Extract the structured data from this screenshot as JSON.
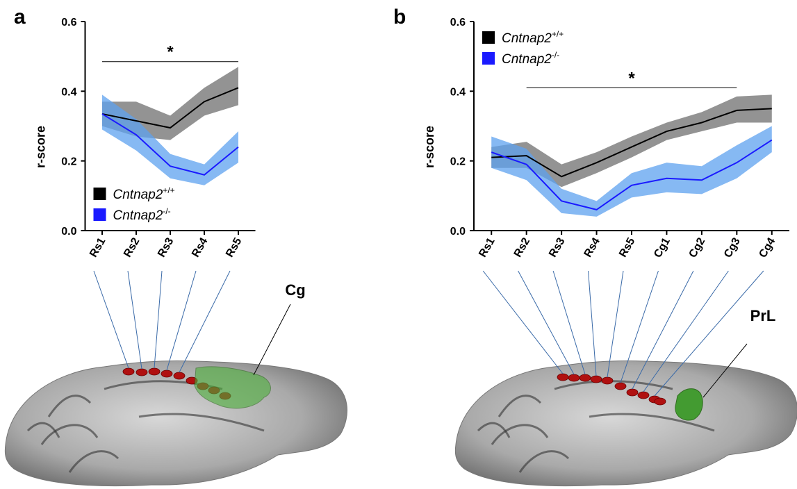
{
  "panels": [
    {
      "letter": "a",
      "region_label": "Cg"
    },
    {
      "letter": "b",
      "region_label": "PrL"
    }
  ],
  "chart_data": [
    {
      "type": "line",
      "ylabel": "r-score",
      "annotation": "*",
      "sig_y": 0.485,
      "sig_from": 0,
      "sig_to": 4,
      "categories": [
        "Rs1",
        "Rs2",
        "Rs3",
        "Rs4",
        "Rs5"
      ],
      "ylim": [
        0,
        0.6
      ],
      "yticks": [
        {
          "value": 0,
          "label": "0.0"
        },
        0.2,
        0.4,
        0.6
      ],
      "legend": "lower left",
      "series": [
        {
          "name": "Cntnap2",
          "superscript": "+/+",
          "color": "#000000",
          "band_color": "#6f6f6f",
          "values": [
            0.335,
            0.315,
            0.295,
            0.37,
            0.41
          ],
          "upper": [
            0.37,
            0.37,
            0.33,
            0.41,
            0.47
          ],
          "lower": [
            0.3,
            0.27,
            0.26,
            0.33,
            0.36
          ]
        },
        {
          "name": "Cntnap2",
          "superscript": "-/-",
          "color": "#1a1aff",
          "band_color": "#5ea2ef",
          "values": [
            0.335,
            0.275,
            0.185,
            0.16,
            0.24
          ],
          "upper": [
            0.39,
            0.32,
            0.22,
            0.19,
            0.285
          ],
          "lower": [
            0.29,
            0.23,
            0.15,
            0.13,
            0.195
          ]
        }
      ]
    },
    {
      "type": "line",
      "ylabel": "r-score",
      "annotation": "*",
      "sig_y": 0.41,
      "sig_from": 1,
      "sig_to": 7,
      "categories": [
        "Rs1",
        "Rs2",
        "Rs3",
        "Rs4",
        "Rs5",
        "Cg1",
        "Cg2",
        "Cg3",
        "Cg4"
      ],
      "ylim": [
        0,
        0.6
      ],
      "yticks": [
        {
          "value": 0,
          "label": "0.0"
        },
        0.2,
        0.4,
        0.6
      ],
      "legend": "upper left",
      "series": [
        {
          "name": "Cntnap2",
          "superscript": "+/+",
          "color": "#000000",
          "band_color": "#6f6f6f",
          "values": [
            0.21,
            0.215,
            0.155,
            0.195,
            0.24,
            0.285,
            0.31,
            0.345,
            0.35
          ],
          "upper": [
            0.24,
            0.255,
            0.19,
            0.225,
            0.27,
            0.31,
            0.34,
            0.385,
            0.39
          ],
          "lower": [
            0.18,
            0.18,
            0.125,
            0.165,
            0.21,
            0.26,
            0.285,
            0.31,
            0.31
          ]
        },
        {
          "name": "Cntnap2",
          "superscript": "-/-",
          "color": "#1a1aff",
          "band_color": "#5ea2ef",
          "values": [
            0.225,
            0.19,
            0.085,
            0.06,
            0.13,
            0.15,
            0.145,
            0.195,
            0.26
          ],
          "upper": [
            0.27,
            0.235,
            0.12,
            0.085,
            0.165,
            0.195,
            0.185,
            0.245,
            0.3
          ],
          "lower": [
            0.18,
            0.145,
            0.05,
            0.04,
            0.095,
            0.11,
            0.105,
            0.15,
            0.225
          ]
        }
      ]
    }
  ]
}
